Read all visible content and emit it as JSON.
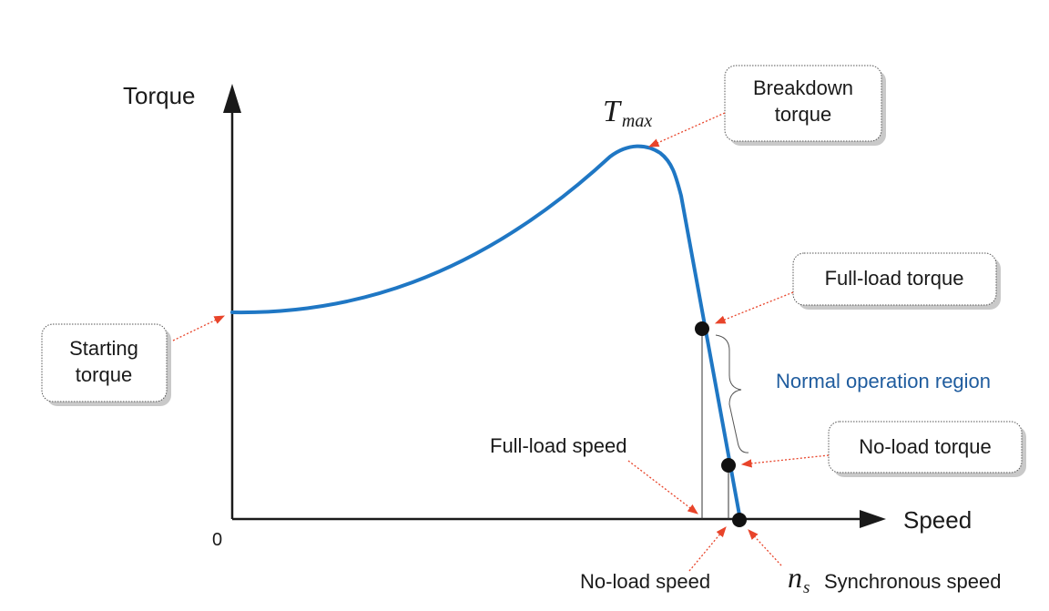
{
  "axes": {
    "y_title": "Torque",
    "x_title": "Speed",
    "origin": "0"
  },
  "annotations": {
    "tmax_symbol": "T",
    "tmax_subscript": "max",
    "breakdown_line1": "Breakdown",
    "breakdown_line2": "torque",
    "full_load_torque": "Full-load torque",
    "starting_line1": "Starting",
    "starting_line2": "torque",
    "normal_region": "Normal operation region",
    "no_load_torque": "No-load torque",
    "full_load_speed": "Full-load speed",
    "no_load_speed": "No-load speed",
    "ns_symbol": "n",
    "ns_subscript": "s",
    "synchronous_speed": "Synchronous speed"
  },
  "colors": {
    "curve": "#1f77c4",
    "region_text": "#1f5c9e",
    "arrow": "#e8442a",
    "axis": "#1a1a1a"
  }
}
